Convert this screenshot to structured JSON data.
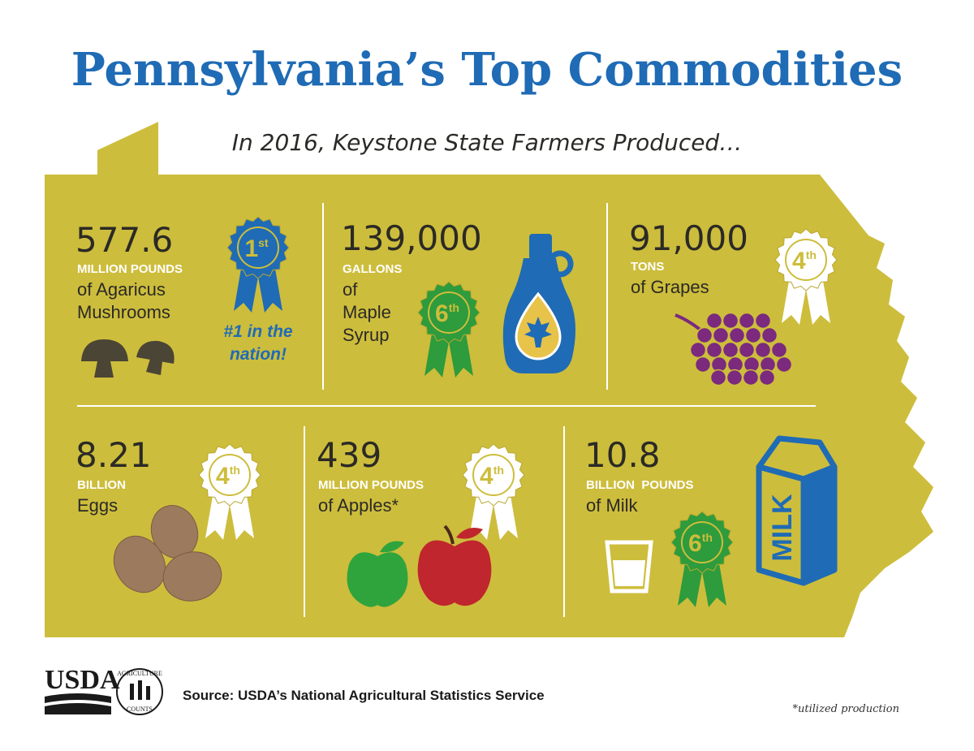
{
  "header": {
    "title": "Pennsylvania’s Top Commodities",
    "subtitle": "In 2016, Keystone State Farmers Produced…"
  },
  "items": [
    {
      "number": "577.6",
      "unit": "MILLION POUNDS",
      "description": [
        "of Agaricus",
        "Mushrooms"
      ],
      "rank": {
        "number": "1",
        "suffix": "st"
      },
      "note": [
        "#1 in the",
        "nation!"
      ]
    },
    {
      "number": "139,000",
      "unit": "GALLONS",
      "description": [
        "of",
        "Maple",
        "Syrup"
      ],
      "rank": {
        "number": "6",
        "suffix": "th"
      }
    },
    {
      "number": "91,000",
      "unit": "TONS",
      "description": [
        "of Grapes"
      ],
      "rank": {
        "number": "4",
        "suffix": "th"
      }
    },
    {
      "number": "8.21",
      "unit": "BILLION",
      "description": [
        "Eggs"
      ],
      "rank": {
        "number": "4",
        "suffix": "th"
      }
    },
    {
      "number": "439",
      "unit": "MILLION POUNDS",
      "description": [
        "of Apples*"
      ],
      "rank": {
        "number": "4",
        "suffix": "th"
      }
    },
    {
      "number": "10.8",
      "unit": "BILLION  POUNDS",
      "description": [
        "of Milk"
      ],
      "rank": {
        "number": "6",
        "suffix": "th"
      },
      "carton_label": "MILK"
    }
  ],
  "footer": {
    "logo": "USDA",
    "seal": [
      "AGRICULTURE",
      "COUNTS"
    ],
    "source": "Source: USDA’s National Agricultural Statistics Service",
    "footnote": "*utilized production"
  }
}
